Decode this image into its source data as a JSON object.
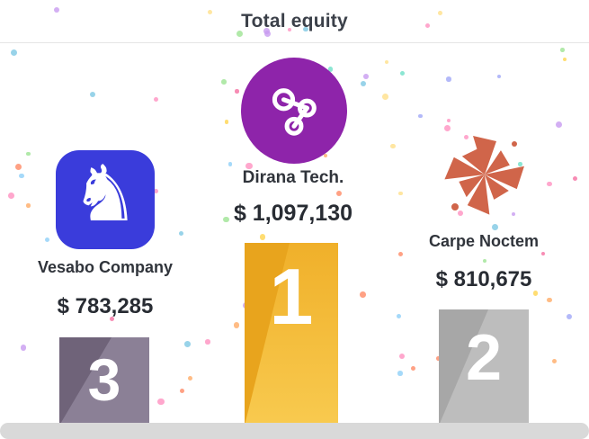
{
  "title": "Total equity",
  "chart_data": {
    "type": "bar",
    "title": "Total equity",
    "categories": [
      "Vesabo Company",
      "Dirana Tech.",
      "Carpe Noctem"
    ],
    "values": [
      783285,
      1097130,
      810675
    ],
    "value_labels": [
      "$ 783,285",
      "$ 1,097,130",
      "$ 810,675"
    ],
    "ranks": [
      3,
      1,
      2
    ],
    "xlabel": "",
    "ylabel": "",
    "legend": false,
    "layout": "podium"
  },
  "podiums": [
    {
      "company": "Vesabo Company",
      "value": "$ 783,285",
      "rank": "3",
      "bar_color": "#8b8096",
      "bar_shade": "#6f6379",
      "logo": "horse-icon",
      "logo_bg": "#3a3cdb",
      "logo_glyph": "♞"
    },
    {
      "company": "Dirana Tech.",
      "value": "$ 1,097,130",
      "rank": "1",
      "bar_color": "#f3bb3a",
      "bar_shade": "#e8a41d",
      "logo": "share-nodes-icon",
      "logo_bg": "#8e24aa"
    },
    {
      "company": "Carpe Noctem",
      "value": "$ 810,675",
      "rank": "2",
      "bar_color": "#bdbdbd",
      "bar_shade": "#a7a7a7",
      "logo": "pinwheel-icon",
      "logo_color": "#d0654a"
    }
  ],
  "base_color": "#d9d9d9",
  "confetti": {
    "count": 90,
    "colors": [
      "#ff91c1",
      "#ffd44f",
      "#9ee493",
      "#8fd0f7",
      "#c89bf0",
      "#ffab66",
      "#6fe0c8",
      "#f56fa1",
      "#ffe08a",
      "#a0a8f8",
      "#ff8a65",
      "#7ec8e3"
    ]
  }
}
